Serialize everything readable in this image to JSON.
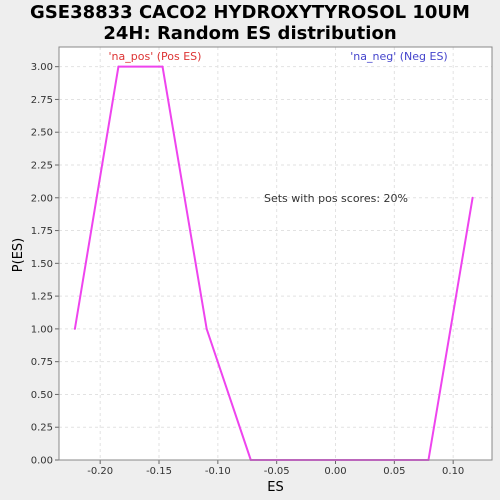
{
  "chart_data": {
    "type": "line",
    "title_line1": "GSE38833 CACO2 HYDROXYTYROSOL 10UM",
    "title_line2": "24H: Random ES distribution",
    "xlabel": "ES",
    "ylabel": "P(ES)",
    "xlim": [
      -0.235,
      0.133
    ],
    "ylim": [
      0,
      3.15
    ],
    "x_ticks": [
      -0.2,
      -0.15,
      -0.1,
      -0.05,
      0.0,
      0.05,
      0.1
    ],
    "x_tick_labels": [
      "-0.20",
      "-0.15",
      "-0.10",
      "-0.05",
      "0.00",
      "0.05",
      "0.10"
    ],
    "y_ticks": [
      0,
      0.25,
      0.5,
      0.75,
      1.0,
      1.25,
      1.5,
      1.75,
      2.0,
      2.25,
      2.5,
      2.75,
      3.0
    ],
    "y_tick_labels": [
      "0.00",
      "0.25",
      "0.50",
      "0.75",
      "1.00",
      "1.25",
      "1.50",
      "1.75",
      "2.00",
      "2.25",
      "2.50",
      "2.75",
      "3.00"
    ],
    "grid": true,
    "series": [
      {
        "color": "#ee44ee",
        "x": [
          -0.2215,
          -0.1845,
          -0.147,
          -0.1095,
          -0.072,
          -0.035,
          0.0045,
          0.042,
          0.079,
          0.1165
        ],
        "y": [
          1.0,
          3.0,
          3.0,
          1.0,
          0.0,
          0.0,
          0.0,
          0.0,
          0.0,
          2.0
        ]
      }
    ],
    "annotations": {
      "pos_label": "'na_pos' (Pos ES)",
      "neg_label": "'na_neg' (Neg ES)",
      "pos_label_color": "#dd3333",
      "neg_label_color": "#4444cc",
      "summary": "Sets with pos scores: 20%"
    }
  }
}
